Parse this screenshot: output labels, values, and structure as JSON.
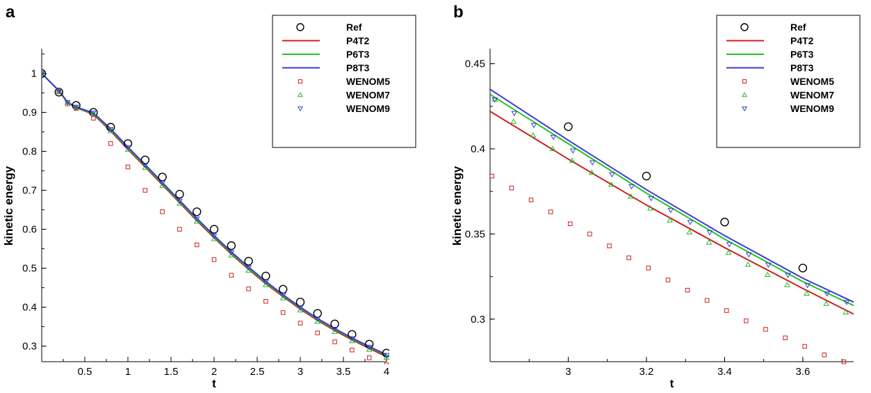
{
  "colors": {
    "ref": "#000000",
    "p4t2": "#cc1f1f",
    "p6t3": "#22c422",
    "p8t3": "#3a3ad6",
    "wenom5": "#cc1f1f",
    "wenom7": "#22b822",
    "wenom9": "#3a3ad6"
  },
  "chart_data": [
    {
      "type": "line",
      "panel": "a",
      "xlabel": "t",
      "ylabel": "kinetic energy",
      "xlim": [
        0,
        4.0
      ],
      "ylim": [
        0.26,
        1.06
      ],
      "xticks": [
        0.5,
        1,
        1.5,
        2,
        2.5,
        3,
        3.5,
        4
      ],
      "xtick_labels": [
        "0.5",
        "1",
        "1.5",
        "2",
        "2.5",
        "3",
        "3.5",
        "4"
      ],
      "yticks": [
        0.3,
        0.4,
        0.5,
        0.6,
        0.7,
        0.8,
        0.9,
        1.0
      ],
      "ytick_labels": [
        "0.3",
        "0.4",
        "0.5",
        "0.6",
        "0.7",
        "0.8",
        "0.9",
        "1"
      ],
      "legend_position": "top-right",
      "legend": [
        "Ref",
        "P4T2",
        "P6T3",
        "P8T3",
        "WENOM5",
        "WENOM7",
        "WENOM9"
      ],
      "series": [
        {
          "name": "Ref",
          "kind": "marker-circle",
          "x": [
            0,
            0.2,
            0.4,
            0.6,
            0.8,
            1.0,
            1.2,
            1.4,
            1.6,
            1.8,
            2.0,
            2.2,
            2.4,
            2.6,
            2.8,
            3.0,
            3.2,
            3.4,
            3.6,
            3.8,
            4.0
          ],
          "y": [
            1.0,
            0.952,
            0.918,
            0.9,
            0.862,
            0.82,
            0.778,
            0.734,
            0.69,
            0.645,
            0.6,
            0.558,
            0.518,
            0.48,
            0.446,
            0.413,
            0.384,
            0.357,
            0.33,
            0.305,
            0.282
          ]
        },
        {
          "name": "P4T2",
          "kind": "line",
          "x": [
            0,
            0.2,
            0.3,
            0.4,
            0.6,
            0.8,
            1.0,
            1.2,
            1.4,
            1.6,
            1.8,
            2.0,
            2.2,
            2.4,
            2.6,
            2.8,
            3.0,
            3.2,
            3.4,
            3.6,
            3.8,
            4.0
          ],
          "y": [
            1.0,
            0.955,
            0.925,
            0.912,
            0.895,
            0.852,
            0.805,
            0.76,
            0.714,
            0.668,
            0.622,
            0.578,
            0.536,
            0.497,
            0.46,
            0.427,
            0.395,
            0.366,
            0.34,
            0.316,
            0.294,
            0.273
          ]
        },
        {
          "name": "P6T3",
          "kind": "line",
          "x": [
            0,
            0.2,
            0.3,
            0.4,
            0.6,
            0.8,
            1.0,
            1.2,
            1.4,
            1.6,
            1.8,
            2.0,
            2.2,
            2.4,
            2.6,
            2.8,
            3.0,
            3.2,
            3.4,
            3.6,
            3.8,
            4.0
          ],
          "y": [
            1.0,
            0.955,
            0.925,
            0.913,
            0.897,
            0.855,
            0.808,
            0.763,
            0.717,
            0.671,
            0.625,
            0.581,
            0.539,
            0.5,
            0.463,
            0.43,
            0.398,
            0.369,
            0.343,
            0.319,
            0.297,
            0.276
          ]
        },
        {
          "name": "P8T3",
          "kind": "line",
          "x": [
            0,
            0.2,
            0.3,
            0.4,
            0.6,
            0.8,
            1.0,
            1.2,
            1.4,
            1.6,
            1.8,
            2.0,
            2.2,
            2.4,
            2.6,
            2.8,
            3.0,
            3.2,
            3.4,
            3.6,
            3.8,
            4.0
          ],
          "y": [
            1.0,
            0.956,
            0.926,
            0.914,
            0.899,
            0.858,
            0.811,
            0.766,
            0.72,
            0.674,
            0.628,
            0.584,
            0.542,
            0.503,
            0.466,
            0.432,
            0.4,
            0.371,
            0.345,
            0.321,
            0.299,
            0.278
          ]
        },
        {
          "name": "WENOM5",
          "kind": "marker-square",
          "x": [
            0,
            0.2,
            0.3,
            0.4,
            0.6,
            0.8,
            1.0,
            1.2,
            1.4,
            1.6,
            1.8,
            2.0,
            2.2,
            2.4,
            2.6,
            2.8,
            3.0,
            3.2,
            3.4,
            3.6,
            3.8,
            4.0
          ],
          "y": [
            1.0,
            0.953,
            0.922,
            0.91,
            0.885,
            0.82,
            0.76,
            0.7,
            0.645,
            0.6,
            0.56,
            0.522,
            0.482,
            0.447,
            0.415,
            0.386,
            0.359,
            0.334,
            0.311,
            0.29,
            0.27,
            0.252
          ]
        },
        {
          "name": "WENOM7",
          "kind": "marker-triangle-up",
          "x": [
            0,
            0.2,
            0.3,
            0.4,
            0.6,
            0.8,
            1.0,
            1.2,
            1.4,
            1.6,
            1.8,
            2.0,
            2.2,
            2.4,
            2.6,
            2.8,
            3.0,
            3.2,
            3.4,
            3.6,
            3.8,
            4.0
          ],
          "y": [
            1.0,
            0.955,
            0.925,
            0.913,
            0.896,
            0.852,
            0.804,
            0.758,
            0.712,
            0.666,
            0.62,
            0.575,
            0.533,
            0.494,
            0.457,
            0.423,
            0.392,
            0.363,
            0.337,
            0.313,
            0.291,
            0.27
          ]
        },
        {
          "name": "WENOM9",
          "kind": "marker-triangle-down",
          "x": [
            0,
            0.2,
            0.3,
            0.4,
            0.6,
            0.8,
            1.0,
            1.2,
            1.4,
            1.6,
            1.8,
            2.0,
            2.2,
            2.4,
            2.6,
            2.8,
            3.0,
            3.2,
            3.4,
            3.6,
            3.8,
            4.0
          ],
          "y": [
            1.0,
            0.956,
            0.926,
            0.914,
            0.899,
            0.857,
            0.81,
            0.765,
            0.719,
            0.673,
            0.627,
            0.583,
            0.541,
            0.502,
            0.465,
            0.431,
            0.399,
            0.37,
            0.344,
            0.32,
            0.298,
            0.277
          ]
        }
      ]
    },
    {
      "type": "line",
      "panel": "b",
      "xlabel": "t",
      "ylabel": "kinetic energy",
      "xlim": [
        2.8,
        3.73
      ],
      "ylim": [
        0.275,
        0.458
      ],
      "xticks": [
        3.0,
        3.2,
        3.4,
        3.6
      ],
      "xtick_labels": [
        "3",
        "3.2",
        "3.4",
        "3.6"
      ],
      "yticks": [
        0.3,
        0.35,
        0.4,
        0.45
      ],
      "ytick_labels": [
        "0.3",
        "0.35",
        "0.4",
        "0.45"
      ],
      "legend_position": "top-right",
      "legend": [
        "Ref",
        "P4T2",
        "P6T3",
        "P8T3",
        "WENOM5",
        "WENOM7",
        "WENOM9"
      ],
      "series": [
        {
          "name": "Ref",
          "kind": "marker-circle",
          "x": [
            3.0,
            3.2,
            3.4,
            3.6
          ],
          "y": [
            0.413,
            0.384,
            0.357,
            0.33
          ]
        },
        {
          "name": "P4T2",
          "kind": "line",
          "x": [
            2.8,
            3.0,
            3.2,
            3.4,
            3.6,
            3.73
          ],
          "y": [
            0.422,
            0.394,
            0.367,
            0.342,
            0.318,
            0.303
          ]
        },
        {
          "name": "P6T3",
          "kind": "line",
          "x": [
            2.8,
            3.0,
            3.2,
            3.4,
            3.6,
            3.73
          ],
          "y": [
            0.432,
            0.403,
            0.374,
            0.347,
            0.322,
            0.308
          ]
        },
        {
          "name": "P8T3",
          "kind": "line",
          "x": [
            2.8,
            3.0,
            3.2,
            3.4,
            3.6,
            3.73
          ],
          "y": [
            0.435,
            0.405,
            0.376,
            0.349,
            0.324,
            0.31
          ]
        },
        {
          "name": "WENOM5",
          "kind": "marker-square",
          "x": [
            2.805,
            2.855,
            2.905,
            2.955,
            3.005,
            3.055,
            3.105,
            3.155,
            3.205,
            3.255,
            3.305,
            3.355,
            3.405,
            3.455,
            3.505,
            3.555,
            3.605,
            3.655,
            3.705
          ],
          "y": [
            0.384,
            0.377,
            0.37,
            0.363,
            0.356,
            0.35,
            0.343,
            0.336,
            0.33,
            0.323,
            0.317,
            0.311,
            0.305,
            0.299,
            0.294,
            0.289,
            0.284,
            0.279,
            0.275
          ]
        },
        {
          "name": "WENOM7",
          "kind": "marker-triangle-up",
          "x": [
            2.812,
            2.86,
            2.91,
            2.96,
            3.01,
            3.06,
            3.11,
            3.16,
            3.21,
            3.26,
            3.31,
            3.36,
            3.41,
            3.46,
            3.51,
            3.56,
            3.61,
            3.66,
            3.71
          ],
          "y": [
            0.429,
            0.416,
            0.408,
            0.4,
            0.393,
            0.386,
            0.379,
            0.372,
            0.365,
            0.358,
            0.351,
            0.345,
            0.339,
            0.332,
            0.326,
            0.32,
            0.315,
            0.309,
            0.304
          ]
        },
        {
          "name": "WENOM9",
          "kind": "marker-triangle-down",
          "x": [
            2.812,
            2.862,
            2.912,
            2.962,
            3.012,
            3.062,
            3.112,
            3.162,
            3.212,
            3.262,
            3.312,
            3.362,
            3.412,
            3.462,
            3.512,
            3.562,
            3.612,
            3.662,
            3.712
          ],
          "y": [
            0.429,
            0.421,
            0.414,
            0.407,
            0.399,
            0.392,
            0.385,
            0.378,
            0.371,
            0.364,
            0.357,
            0.351,
            0.344,
            0.338,
            0.332,
            0.326,
            0.32,
            0.315,
            0.31
          ]
        }
      ]
    }
  ]
}
